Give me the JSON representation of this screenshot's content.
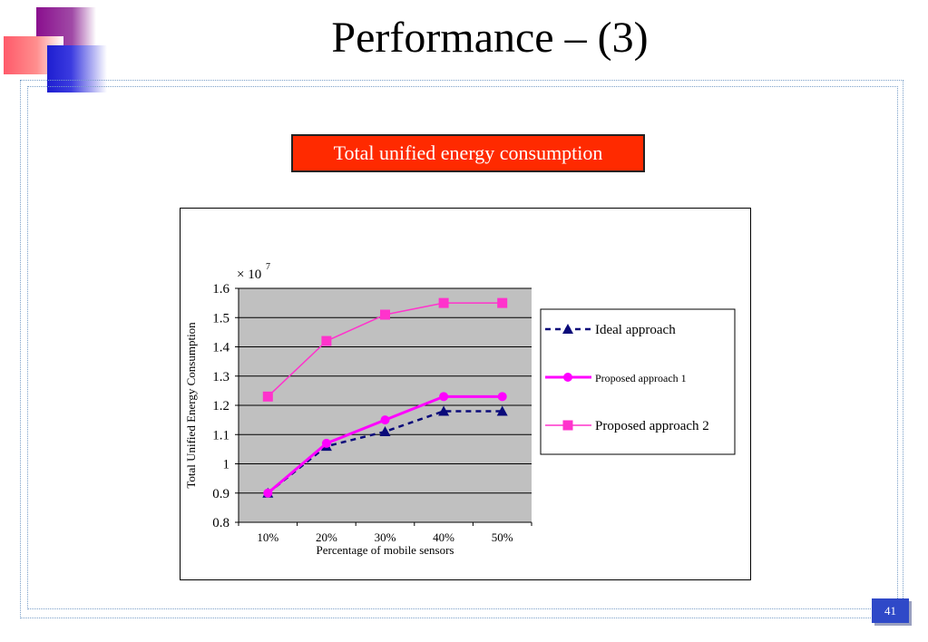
{
  "slide": {
    "title": "Performance – (3)",
    "banner": "Total unified energy consumption",
    "page_number": "41"
  },
  "colors": {
    "banner_bg": "#ff2a00",
    "plot_bg": "#c0c0c0",
    "ideal": "#0a0a7a",
    "proposed1": "#ff00ff",
    "proposed2": "#ff33cc",
    "page_badge": "#2f49c8"
  },
  "chart_data": {
    "type": "line",
    "title": "",
    "multiplier": "× 10",
    "multiplier_exp": "7",
    "xlabel": "Percentage of mobile sensors",
    "ylabel": "Total Unified Energy Consumption",
    "categories": [
      "10%",
      "20%",
      "30%",
      "40%",
      "50%"
    ],
    "ylim": [
      0.8,
      1.6
    ],
    "yticks": [
      "1.6",
      "1.5",
      "1.4",
      "1.3",
      "1.2",
      "1.1",
      "1",
      "0.9",
      "0.8"
    ],
    "ytick_values": [
      1.6,
      1.5,
      1.4,
      1.3,
      1.2,
      1.1,
      1.0,
      0.9,
      0.8
    ],
    "grid": true,
    "legend_position": "right",
    "series": [
      {
        "name": "Ideal approach",
        "values": [
          0.9,
          1.06,
          1.11,
          1.18,
          1.18
        ],
        "style": "dashed",
        "marker": "triangle",
        "color": "#0a0a7a"
      },
      {
        "name": "Proposed approach 1",
        "values": [
          0.9,
          1.07,
          1.15,
          1.23,
          1.23
        ],
        "style": "solid-thick",
        "marker": "circle",
        "color": "#ff00ff"
      },
      {
        "name": "Proposed approach 2",
        "values": [
          1.23,
          1.42,
          1.51,
          1.55,
          1.55
        ],
        "style": "solid",
        "marker": "square",
        "color": "#ff33cc"
      }
    ]
  }
}
